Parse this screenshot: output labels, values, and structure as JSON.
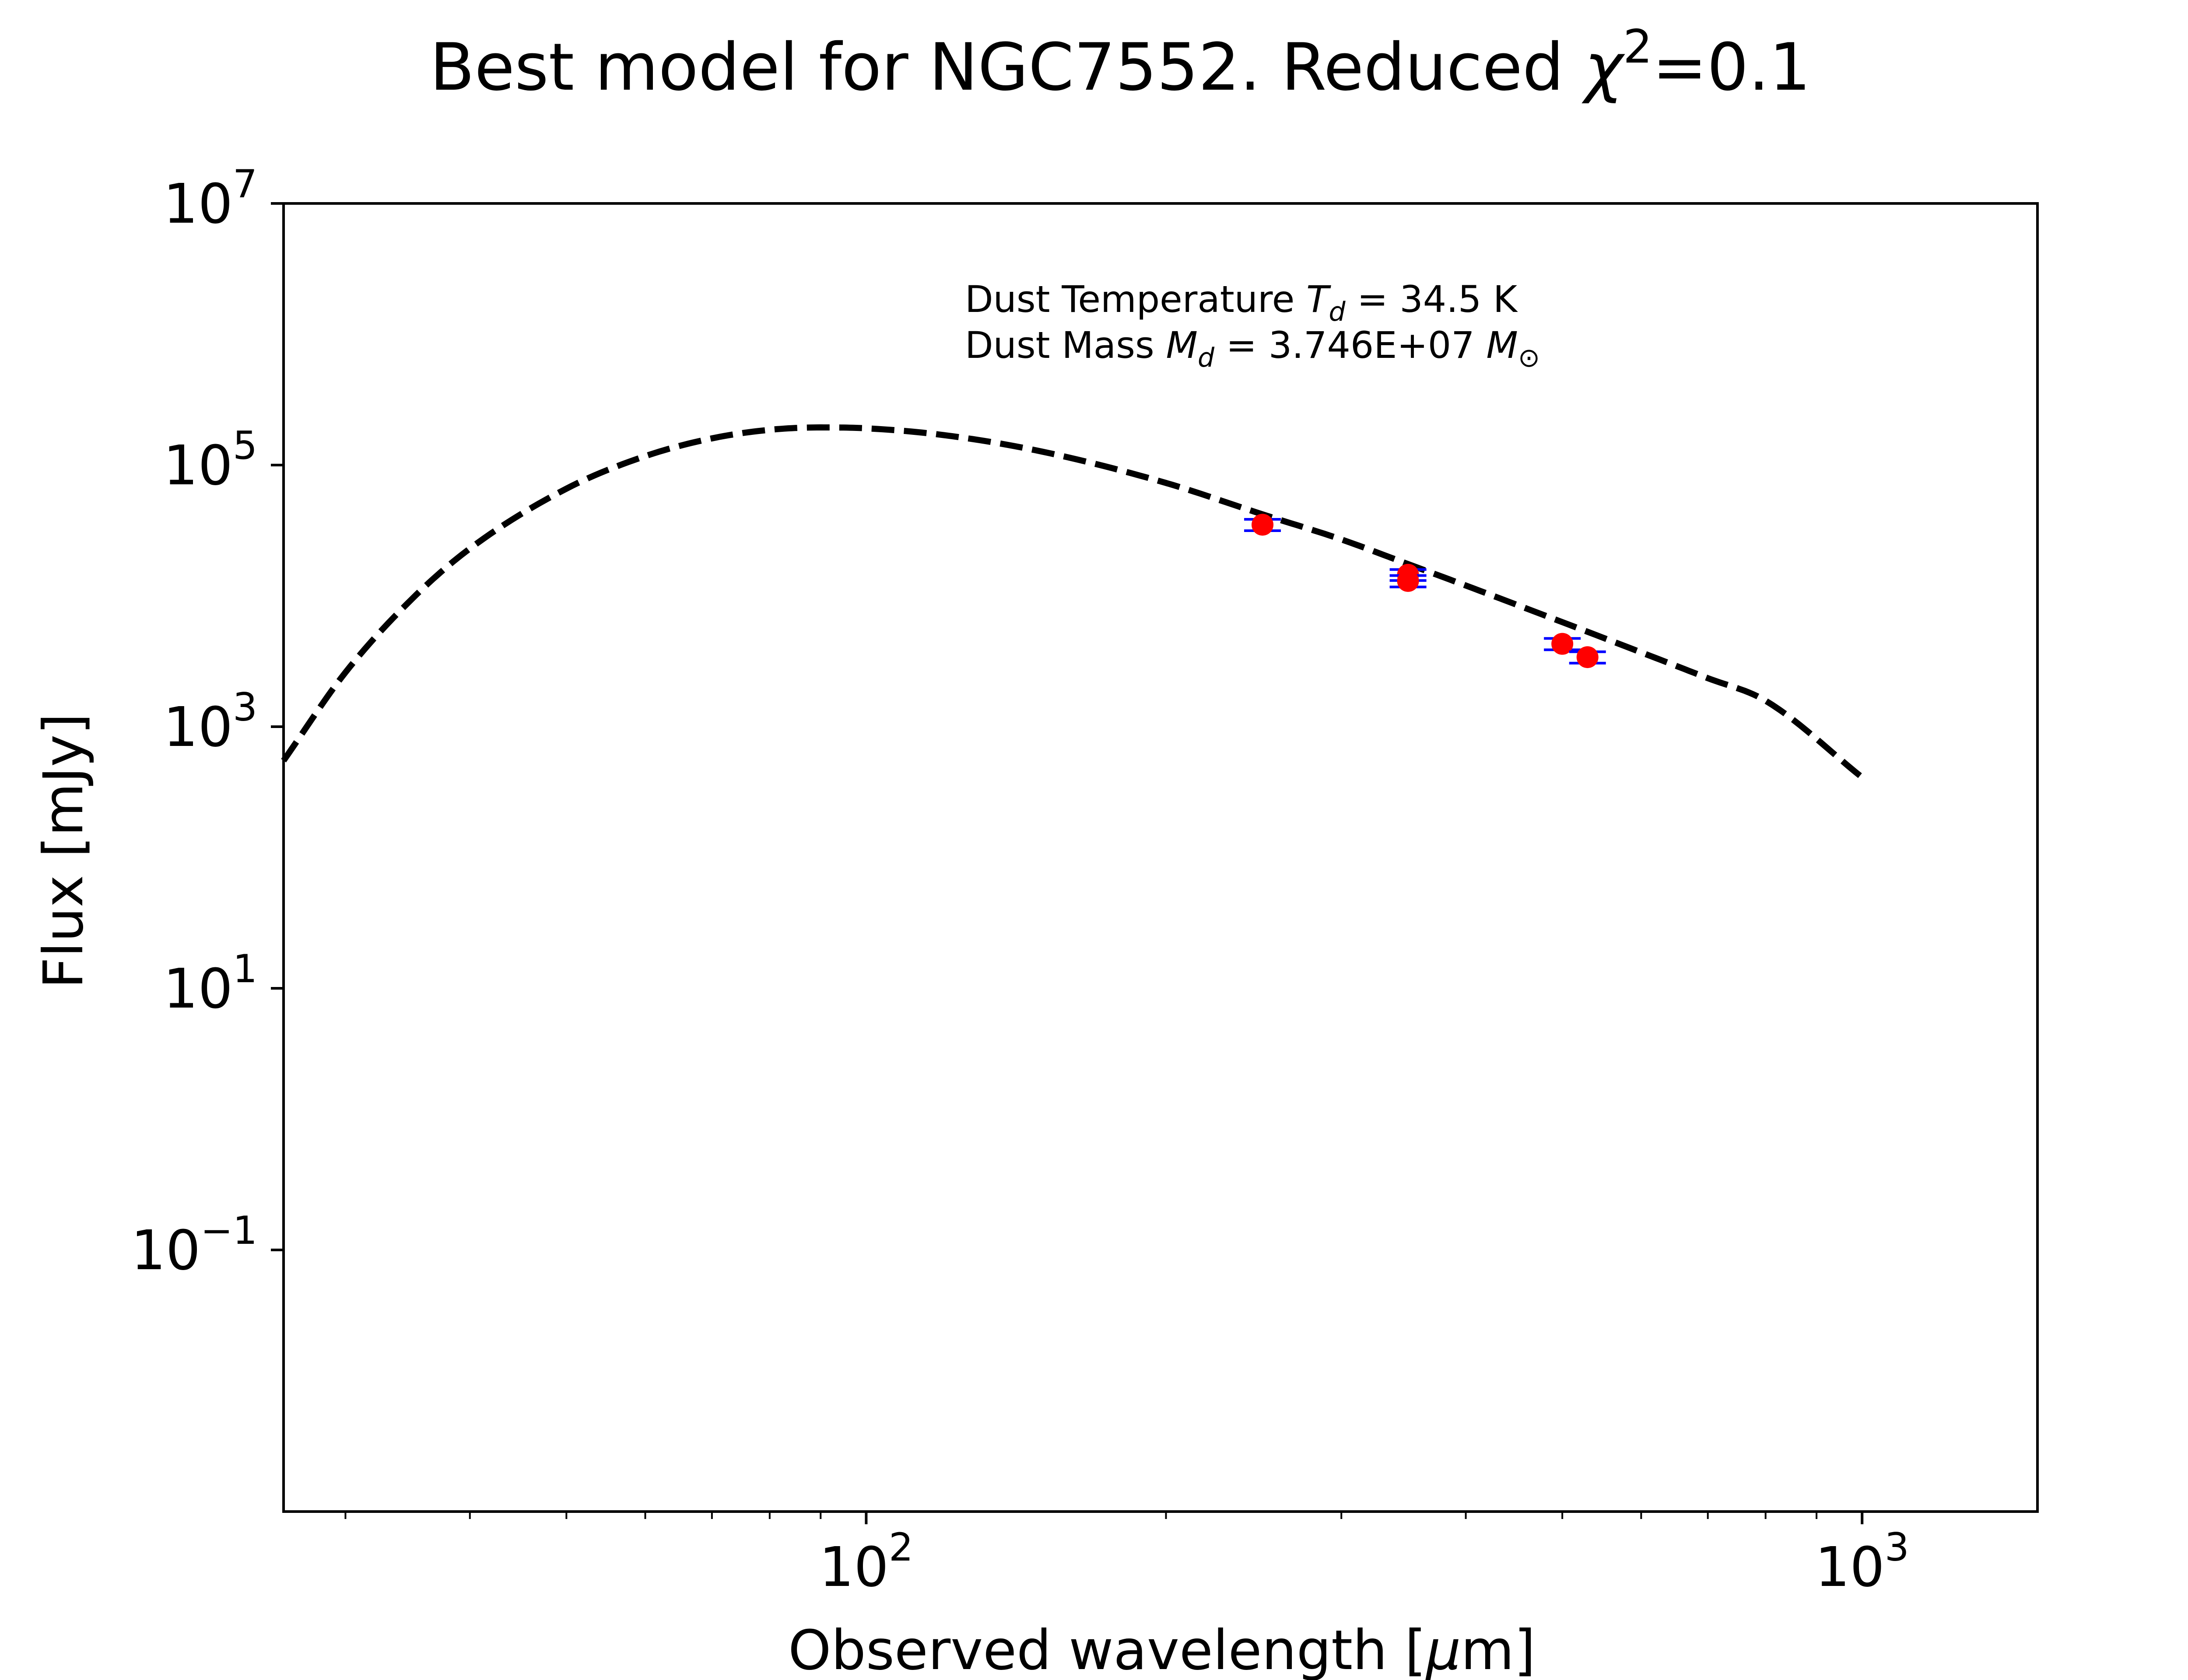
{
  "chart_data": {
    "type": "line",
    "title": {
      "main": "Best model for NGC7552. Reduced ",
      "chi": "χ",
      "sup": "2",
      "value": "=0.1"
    },
    "xlabel": {
      "pre": "Observed wavelength [",
      "mu": "μ",
      "post": "m]"
    },
    "ylabel": "Flux [mJy]",
    "x_scale": "log",
    "y_scale": "log",
    "xlim": [
      26,
      1500
    ],
    "ylim": [
      0.001,
      10000000
    ],
    "x_ticks": [
      {
        "value": 100,
        "base": "10",
        "exp": "2"
      },
      {
        "value": 1000,
        "base": "10",
        "exp": "3"
      }
    ],
    "y_ticks": [
      {
        "value": 0.1,
        "base": "10",
        "exp": "−1"
      },
      {
        "value": 10,
        "base": "10",
        "exp": "1"
      },
      {
        "value": 1000,
        "base": "10",
        "exp": "3"
      },
      {
        "value": 100000,
        "base": "10",
        "exp": "5"
      },
      {
        "value": 10000000,
        "base": "10",
        "exp": "7"
      }
    ],
    "annotations": [
      {
        "label": "Dust Temperature ",
        "sym": "T",
        "sub": "d",
        "rest": " = 34.5 K"
      },
      {
        "label": "Dust Mass ",
        "sym": "M",
        "sub": "d",
        "rest": " = 3.746E+07 ",
        "sym2": "M",
        "sub2": "⊙"
      }
    ],
    "model": {
      "name": "",
      "style": "dashed",
      "color": "#000000",
      "x": [
        26,
        30,
        35,
        40,
        50,
        60,
        70,
        80,
        90,
        100,
        120,
        150,
        200,
        250,
        300,
        350,
        400,
        500,
        600,
        700,
        800,
        1000
      ],
      "y": [
        550,
        2600,
        9500,
        23000,
        66000,
        117000,
        160000,
        186000,
        194000,
        191000,
        169000,
        127000,
        73000,
        42000,
        27000,
        17500,
        12000,
        6300,
        3700,
        2350,
        1580,
        410
      ]
    },
    "observations": {
      "name": "",
      "marker_color": "#ff0000",
      "errorbar_color": "#0000ff",
      "points": [
        {
          "x": 250,
          "y": 35000,
          "yerr": 3500
        },
        {
          "x": 350,
          "y": 14500,
          "yerr": 1400
        },
        {
          "x": 350,
          "y": 13000,
          "yerr": 1300
        },
        {
          "x": 500,
          "y": 4300,
          "yerr": 430
        },
        {
          "x": 530,
          "y": 3400,
          "yerr": 340
        }
      ]
    }
  }
}
